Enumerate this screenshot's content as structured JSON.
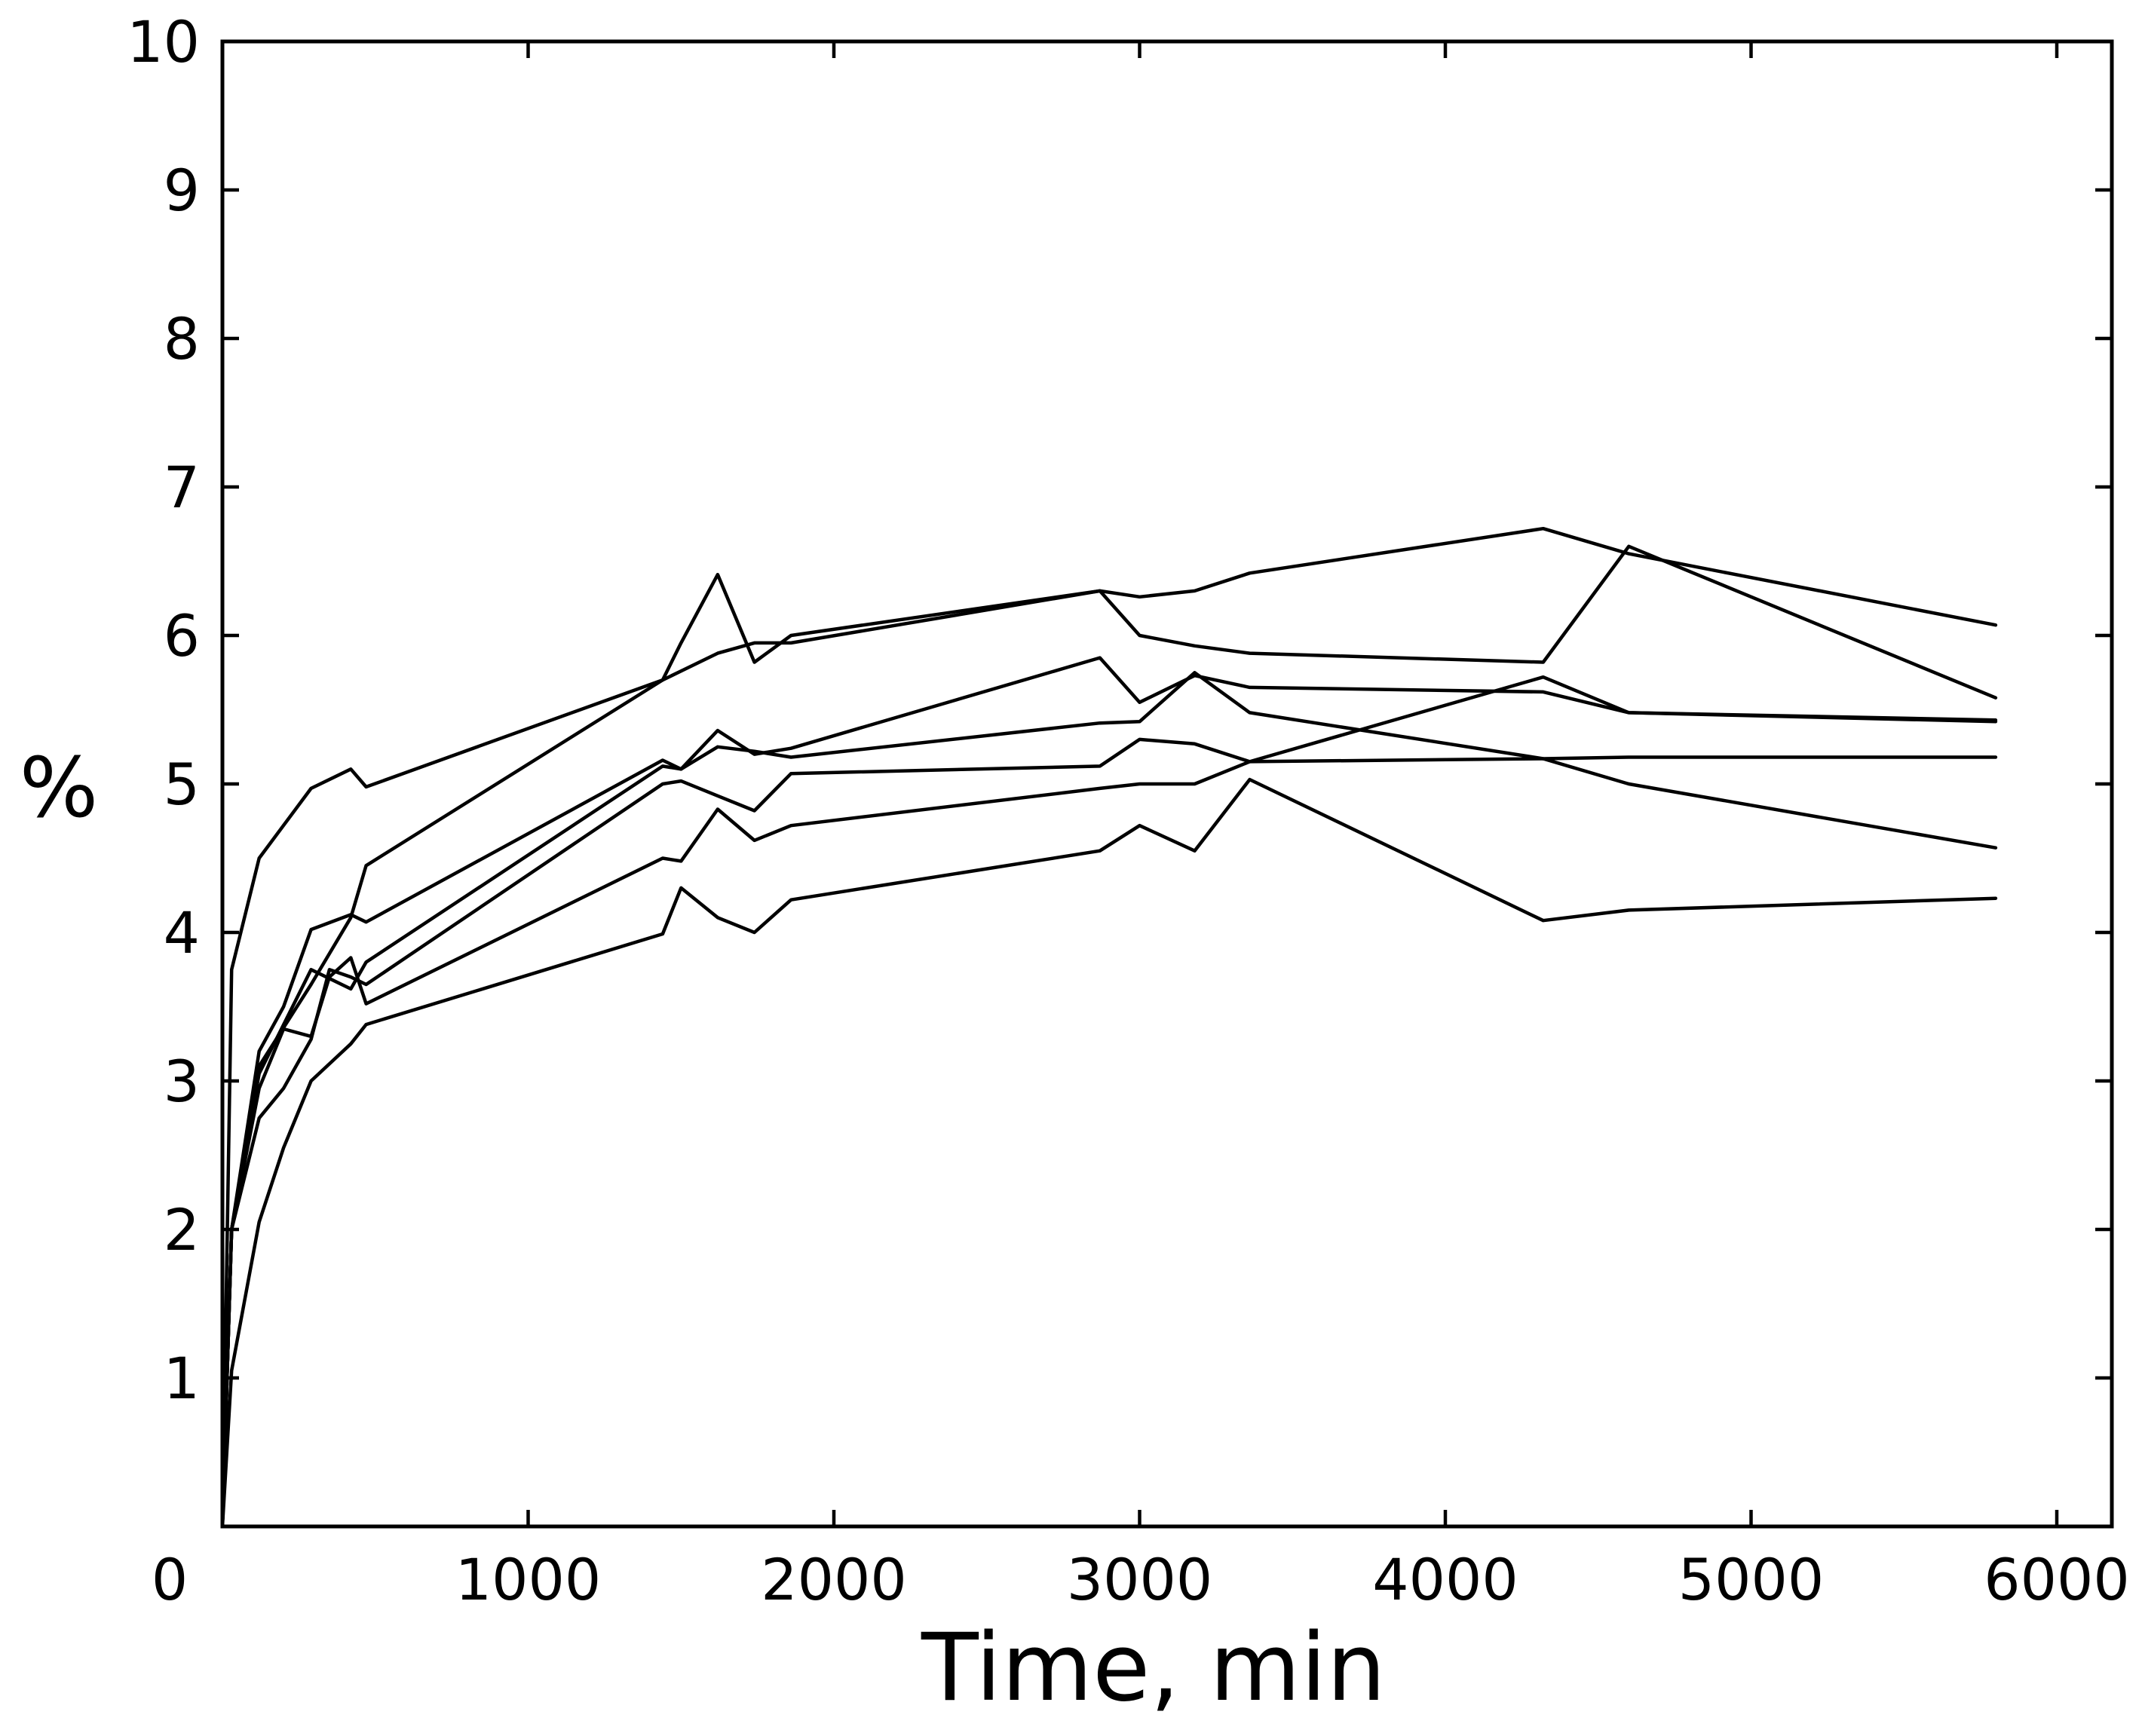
{
  "chart_data": {
    "type": "line",
    "title": "",
    "xlabel": "Time, min",
    "ylabel": "%",
    "xlim": [
      0,
      6000
    ],
    "ylim": [
      0,
      10
    ],
    "xticks": [
      0,
      1000,
      2000,
      3000,
      4000,
      5000,
      6000
    ],
    "xtick_labels": [
      "0",
      "1000",
      "2000",
      "3000",
      "4000",
      "5000",
      "6000"
    ],
    "yticks": [
      1,
      2,
      3,
      4,
      5,
      6,
      7,
      8,
      9,
      10
    ],
    "ytick_labels": [
      "1",
      "2",
      "3",
      "4",
      "5",
      "6",
      "7",
      "8",
      "9",
      "10"
    ],
    "grid": false,
    "line_color": "#000000",
    "series": [
      {
        "x": [
          0,
          30,
          120,
          290,
          420,
          470,
          1440,
          1620,
          1740,
          1860,
          2870,
          3000,
          3180,
          3360,
          4320,
          4600,
          5800
        ],
        "y": [
          0,
          3.75,
          4.5,
          4.97,
          5.1,
          4.98,
          5.7,
          5.88,
          5.95,
          5.95,
          6.3,
          6.26,
          6.3,
          6.42,
          6.72,
          6.55,
          6.07
        ]
      },
      {
        "x": [
          0,
          30,
          120,
          290,
          420,
          470,
          1440,
          1500,
          1620,
          1740,
          1860,
          2870,
          3000,
          3180,
          3360,
          4320,
          4600,
          5800
        ],
        "y": [
          0,
          2.0,
          3.1,
          3.65,
          4.1,
          4.45,
          5.7,
          5.95,
          6.41,
          5.82,
          6.0,
          6.3,
          6.0,
          5.93,
          5.88,
          5.82,
          6.6,
          5.58
        ]
      },
      {
        "x": [
          0,
          30,
          120,
          200,
          290,
          420,
          470,
          1440,
          1500,
          1620,
          1740,
          1860,
          2870,
          3000,
          3180,
          3360,
          4320,
          4600,
          5800
        ],
        "y": [
          0,
          2.0,
          3.2,
          3.5,
          4.02,
          4.12,
          4.07,
          5.16,
          5.1,
          5.36,
          5.2,
          5.24,
          5.85,
          5.55,
          5.73,
          5.65,
          5.62,
          5.48,
          5.42
        ]
      },
      {
        "x": [
          0,
          30,
          120,
          290,
          420,
          470,
          1440,
          1500,
          1620,
          1740,
          1860,
          2870,
          3000,
          3180,
          3360,
          4320,
          4600,
          5800
        ],
        "y": [
          0,
          2.0,
          3.05,
          3.75,
          3.62,
          3.8,
          5.12,
          5.1,
          5.25,
          5.22,
          5.18,
          5.41,
          5.42,
          5.75,
          5.48,
          5.17,
          5.0,
          4.57
        ]
      },
      {
        "x": [
          0,
          30,
          120,
          200,
          290,
          350,
          420,
          470,
          1440,
          1500,
          1620,
          1740,
          1860,
          2870,
          3000,
          3180,
          3360,
          4320,
          4600,
          5800
        ],
        "y": [
          0,
          2.0,
          2.95,
          3.35,
          3.3,
          3.7,
          3.83,
          3.52,
          4.5,
          4.48,
          4.83,
          4.62,
          4.72,
          4.97,
          5.0,
          5.0,
          5.15,
          5.72,
          5.48,
          5.43
        ]
      },
      {
        "x": [
          0,
          30,
          120,
          200,
          290,
          350,
          420,
          470,
          1440,
          1500,
          1620,
          1740,
          1860,
          2870,
          3000,
          3180,
          3360,
          4320,
          4600,
          5800
        ],
        "y": [
          0,
          2.0,
          2.75,
          2.95,
          3.28,
          3.75,
          3.7,
          3.65,
          5.0,
          5.02,
          4.92,
          4.82,
          5.07,
          5.12,
          5.3,
          5.27,
          5.15,
          5.17,
          5.18,
          5.18
        ]
      },
      {
        "x": [
          0,
          30,
          120,
          200,
          290,
          420,
          470,
          1440,
          1500,
          1620,
          1740,
          1860,
          2870,
          3000,
          3180,
          3360,
          4320,
          4600,
          5800
        ],
        "y": [
          0,
          1.05,
          2.05,
          2.55,
          3.0,
          3.25,
          3.38,
          3.99,
          4.3,
          4.1,
          4.0,
          4.22,
          4.55,
          4.72,
          4.55,
          5.03,
          4.08,
          4.15,
          4.23
        ]
      }
    ]
  }
}
